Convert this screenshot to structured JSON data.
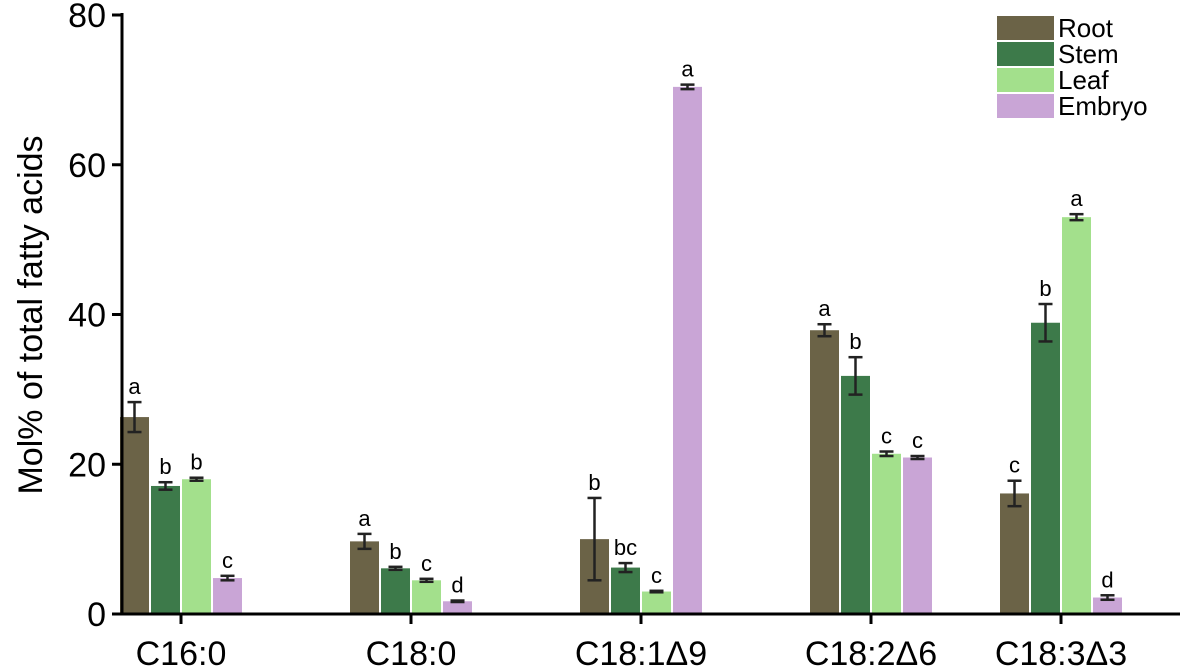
{
  "chart_data": {
    "type": "bar",
    "title": "",
    "xlabel": "",
    "ylabel": "Mol% of total fatty acids",
    "ylim": [
      0,
      80
    ],
    "yticks": [
      0,
      20,
      40,
      60,
      80
    ],
    "grid": false,
    "legend_position": "top-right",
    "categories": [
      "C16:0",
      "C18:0",
      "C18:1Δ9",
      "C18:2Δ6",
      "C18:3Δ3"
    ],
    "series": [
      {
        "name": "Root",
        "color": "#6b6347",
        "values": [
          26.3,
          9.7,
          10.0,
          37.9,
          16.1
        ],
        "errors": [
          2.0,
          1.0,
          5.5,
          0.8,
          1.7
        ],
        "letters": [
          "a",
          "a",
          "b",
          "a",
          "c"
        ]
      },
      {
        "name": "Stem",
        "color": "#3d7a4a",
        "values": [
          17.1,
          6.1,
          6.2,
          31.8,
          38.9
        ],
        "errors": [
          0.5,
          0.2,
          0.6,
          2.5,
          2.5
        ],
        "letters": [
          "b",
          "b",
          "bc",
          "b",
          "b"
        ]
      },
      {
        "name": "Leaf",
        "color": "#a3e08c",
        "values": [
          18.0,
          4.5,
          3.0,
          21.4,
          53.0
        ],
        "errors": [
          0.2,
          0.2,
          0.1,
          0.3,
          0.4
        ],
        "letters": [
          "b",
          "c",
          "c",
          "c",
          "a"
        ]
      },
      {
        "name": "Embryo",
        "color": "#c9a5d6",
        "values": [
          4.8,
          1.7,
          70.4,
          20.9,
          2.2
        ],
        "errors": [
          0.3,
          0.1,
          0.3,
          0.2,
          0.3
        ],
        "letters": [
          "c",
          "d",
          "a",
          "c",
          "d"
        ]
      }
    ]
  }
}
